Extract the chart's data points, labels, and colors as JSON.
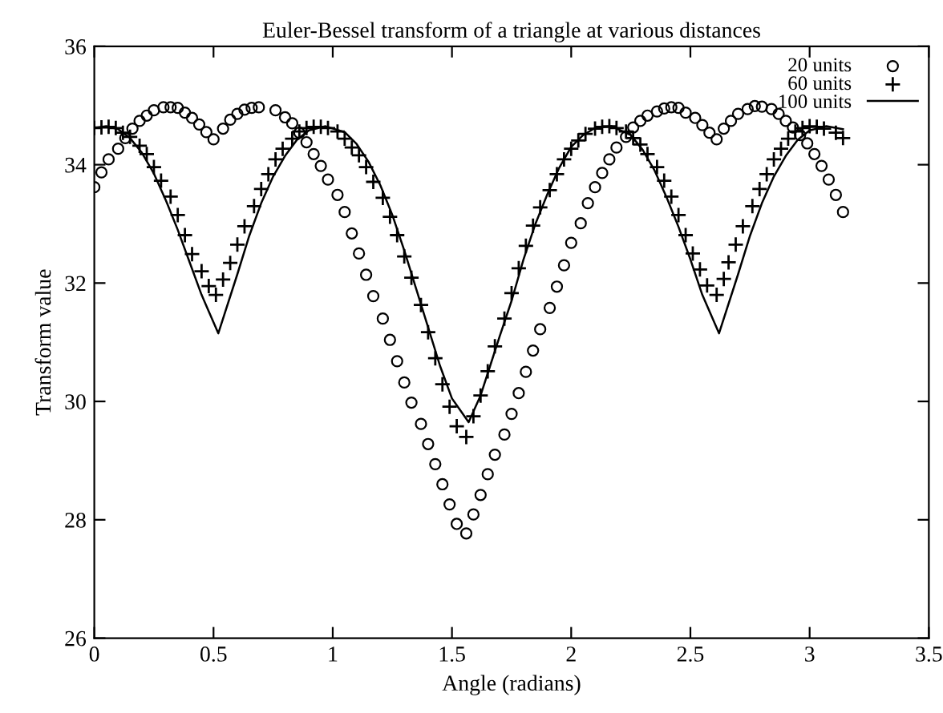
{
  "chart_data": {
    "type": "scatter",
    "title": "Euler-Bessel transform of a triangle at various distances",
    "xlabel": "Angle (radians)",
    "ylabel": "Transform value",
    "xlim": [
      0,
      3.5
    ],
    "xticks": [
      0,
      0.5,
      1,
      1.5,
      2,
      2.5,
      3,
      3.5
    ],
    "ylim": [
      26,
      36
    ],
    "yticks": [
      26,
      28,
      30,
      32,
      34,
      36
    ],
    "grid": false,
    "legend": "top right",
    "series": [
      {
        "name": "20 units",
        "marker": "circle",
        "color": "#000000",
        "x": [
          0,
          0.03,
          0.06,
          0.1,
          0.13,
          0.16,
          0.19,
          0.22,
          0.25,
          0.29,
          0.32,
          0.35,
          0.38,
          0.41,
          0.44,
          0.47,
          0.5,
          0.54,
          0.57,
          0.6,
          0.63,
          0.66,
          0.69,
          0.76,
          0.8,
          0.83,
          0.86,
          0.89,
          0.92,
          0.95,
          0.98,
          1.02,
          1.05,
          1.08,
          1.11,
          1.14,
          1.17,
          1.21,
          1.24,
          1.27,
          1.3,
          1.33,
          1.37,
          1.4,
          1.43,
          1.46,
          1.49,
          1.52,
          1.56,
          1.59,
          1.62,
          1.65,
          1.68,
          1.72,
          1.75,
          1.78,
          1.81,
          1.84,
          1.87,
          1.91,
          1.94,
          1.97,
          2.0,
          2.04,
          2.07,
          2.1,
          2.13,
          2.16,
          2.19,
          2.23,
          2.26,
          2.29,
          2.32,
          2.36,
          2.39,
          2.42,
          2.45,
          2.48,
          2.52,
          2.55,
          2.58,
          2.61,
          2.64,
          2.67,
          2.7,
          2.74,
          2.77,
          2.8,
          2.84,
          2.87,
          2.9,
          2.93,
          2.96,
          2.99,
          3.02,
          3.05,
          3.08,
          3.11,
          3.14
        ],
        "values": [
          33.62,
          33.87,
          34.09,
          34.27,
          34.45,
          34.61,
          34.74,
          34.83,
          34.92,
          34.97,
          34.97,
          34.96,
          34.88,
          34.79,
          34.68,
          34.55,
          34.43,
          34.61,
          34.76,
          34.86,
          34.93,
          34.96,
          34.97,
          34.92,
          34.8,
          34.7,
          34.54,
          34.38,
          34.18,
          33.98,
          33.75,
          33.49,
          33.2,
          32.84,
          32.5,
          32.14,
          31.78,
          31.4,
          31.04,
          30.68,
          30.32,
          29.98,
          29.62,
          29.28,
          28.94,
          28.6,
          28.26,
          27.93,
          27.77,
          28.09,
          28.42,
          28.77,
          29.1,
          29.44,
          29.79,
          30.14,
          30.5,
          30.86,
          31.22,
          31.58,
          31.94,
          32.3,
          32.68,
          33.01,
          33.35,
          33.62,
          33.86,
          34.09,
          34.29,
          34.47,
          34.63,
          34.74,
          34.83,
          34.9,
          34.95,
          34.97,
          34.96,
          34.88,
          34.79,
          34.67,
          34.54,
          34.43,
          34.61,
          34.74,
          34.86,
          34.94,
          34.99,
          34.98,
          34.94,
          34.86,
          34.74,
          34.63,
          34.5,
          34.36,
          34.18,
          33.98,
          33.75,
          33.49,
          33.2
        ]
      },
      {
        "name": "60 units",
        "marker": "cross",
        "color": "#000000",
        "x": [
          0,
          0.03,
          0.06,
          0.09,
          0.12,
          0.15,
          0.19,
          0.22,
          0.25,
          0.28,
          0.32,
          0.35,
          0.38,
          0.41,
          0.45,
          0.48,
          0.51,
          0.54,
          0.57,
          0.6,
          0.63,
          0.67,
          0.7,
          0.73,
          0.76,
          0.79,
          0.83,
          0.86,
          0.89,
          0.92,
          0.95,
          0.98,
          1.02,
          1.05,
          1.08,
          1.11,
          1.14,
          1.17,
          1.21,
          1.24,
          1.27,
          1.3,
          1.33,
          1.37,
          1.4,
          1.43,
          1.46,
          1.49,
          1.52,
          1.56,
          1.59,
          1.62,
          1.65,
          1.68,
          1.72,
          1.75,
          1.78,
          1.81,
          1.84,
          1.87,
          1.91,
          1.94,
          1.97,
          2.0,
          2.03,
          2.06,
          2.1,
          2.13,
          2.16,
          2.19,
          2.23,
          2.26,
          2.29,
          2.32,
          2.36,
          2.39,
          2.42,
          2.45,
          2.48,
          2.51,
          2.54,
          2.57,
          2.61,
          2.64,
          2.66,
          2.69,
          2.72,
          2.76,
          2.79,
          2.82,
          2.85,
          2.88,
          2.91,
          2.94,
          2.97,
          3.0,
          3.03,
          3.06,
          3.11,
          3.14
        ],
        "values": [
          34.62,
          34.63,
          34.64,
          34.62,
          34.54,
          34.47,
          34.32,
          34.18,
          33.96,
          33.73,
          33.46,
          33.15,
          32.81,
          32.49,
          32.2,
          31.95,
          31.8,
          32.06,
          32.34,
          32.65,
          32.96,
          33.3,
          33.59,
          33.84,
          34.09,
          34.27,
          34.44,
          34.56,
          34.62,
          34.64,
          34.64,
          34.62,
          34.56,
          34.44,
          34.29,
          34.16,
          33.96,
          33.71,
          33.44,
          33.12,
          32.81,
          32.45,
          32.09,
          31.63,
          31.17,
          30.73,
          30.29,
          29.91,
          29.58,
          29.4,
          29.75,
          30.1,
          30.51,
          30.93,
          31.4,
          31.83,
          32.25,
          32.63,
          32.97,
          33.28,
          33.57,
          33.84,
          34.09,
          34.27,
          34.41,
          34.52,
          34.61,
          34.64,
          34.65,
          34.62,
          34.56,
          34.45,
          34.34,
          34.18,
          33.96,
          33.73,
          33.46,
          33.15,
          32.81,
          32.5,
          32.23,
          31.96,
          31.8,
          32.07,
          32.35,
          32.65,
          32.96,
          33.3,
          33.59,
          33.84,
          34.09,
          34.27,
          34.44,
          34.56,
          34.62,
          34.65,
          34.64,
          34.61,
          34.54,
          34.45
        ]
      },
      {
        "name": "100 units",
        "type": "line",
        "marker": "none",
        "line_style": "solid",
        "color": "#000000",
        "x": [
          0,
          0.05,
          0.1,
          0.15,
          0.2,
          0.25,
          0.3,
          0.35,
          0.4,
          0.45,
          0.52,
          0.6,
          0.65,
          0.7,
          0.75,
          0.8,
          0.85,
          0.9,
          0.97,
          1.05,
          1.1,
          1.15,
          1.2,
          1.25,
          1.3,
          1.35,
          1.4,
          1.45,
          1.5,
          1.57,
          1.62,
          1.66,
          1.7,
          1.75,
          1.8,
          1.85,
          1.9,
          1.95,
          2.0,
          2.05,
          2.1,
          2.17,
          2.25,
          2.3,
          2.35,
          2.4,
          2.45,
          2.5,
          2.55,
          2.62,
          2.7,
          2.75,
          2.8,
          2.85,
          2.9,
          2.95,
          3.0,
          3.07,
          3.14
        ],
        "values": [
          34.62,
          34.65,
          34.6,
          34.45,
          34.2,
          33.85,
          33.4,
          32.9,
          32.35,
          31.8,
          31.15,
          32.15,
          32.8,
          33.35,
          33.8,
          34.15,
          34.42,
          34.58,
          34.65,
          34.55,
          34.35,
          34.05,
          33.65,
          33.15,
          32.55,
          31.9,
          31.25,
          30.6,
          30.05,
          29.65,
          30.1,
          30.6,
          31.1,
          31.7,
          32.4,
          33.0,
          33.5,
          33.95,
          34.3,
          34.5,
          34.62,
          34.65,
          34.5,
          34.25,
          33.9,
          33.45,
          32.95,
          32.4,
          31.8,
          31.15,
          32.15,
          32.8,
          33.35,
          33.8,
          34.15,
          34.42,
          34.58,
          34.65,
          34.6
        ]
      }
    ]
  }
}
